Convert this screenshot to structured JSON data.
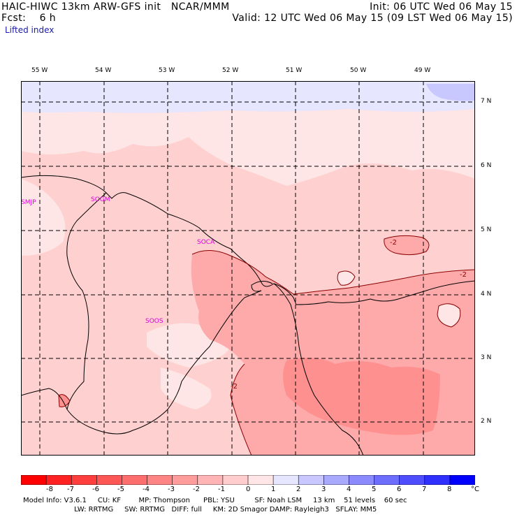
{
  "header": {
    "line1_left": "HAIC-HIWC 13km ARW-GFS init   NCAR/MMM",
    "line1_right": "Init: 06 UTC Wed 06 May 15",
    "line2_left": "Fcst:    6 h",
    "line2_right": "Valid: 12 UTC Wed 06 May 15 (09 LST Wed 06 May 15)",
    "field": "Lifted index"
  },
  "longitude_labels": [
    "55 W",
    "54 W",
    "53 W",
    "52 W",
    "51 W",
    "50 W",
    "49 W"
  ],
  "latitude_labels": [
    "7 N",
    "6 N",
    "5 N",
    "4 N",
    "3 N",
    "2 N"
  ],
  "stations": [
    "SMJP",
    "SOGM",
    "SOCA",
    "SOOS"
  ],
  "contour_labels": [
    "-2",
    "-2",
    "-2"
  ],
  "colorbar": {
    "labels": [
      "-8",
      "-7",
      "-6",
      "-5",
      "-4",
      "-3",
      "-2",
      "-1",
      "0",
      "1",
      "2",
      "3",
      "4",
      "5",
      "6",
      "7",
      "8"
    ],
    "unit": "°C",
    "colors": [
      "#ff0000",
      "#ff2222",
      "#ff3e3e",
      "#ff5656",
      "#ff6d6d",
      "#ff8585",
      "#ff9d9d",
      "#ffb5b5",
      "#ffcdcd",
      "#ffe6e6",
      "#e6e6ff",
      "#c8c8ff",
      "#a9a9ff",
      "#8b8bff",
      "#6d6dff",
      "#4e4eff",
      "#2f2fff",
      "#0000ff"
    ]
  },
  "footer": {
    "line1": "Model Info: V3.6.1     CU: KF        MP: Thompson      PBL: YSU         SF: Noah LSM     13 km    51 levels    60 sec",
    "line2": "                       LW: RRTMG     SW: RRTMG   DIFF: full     KM: 2D Smagor DAMP: Rayleigh3   SFLAY: MM5"
  },
  "fill_colors": {
    "light_pink": "#ffd0d0",
    "pale": "#ffe6e6",
    "medium": "#ffaaaa",
    "darker": "#ff9090",
    "lavender": "#e4e4ff",
    "lavender_dark": "#c8c8ff"
  }
}
